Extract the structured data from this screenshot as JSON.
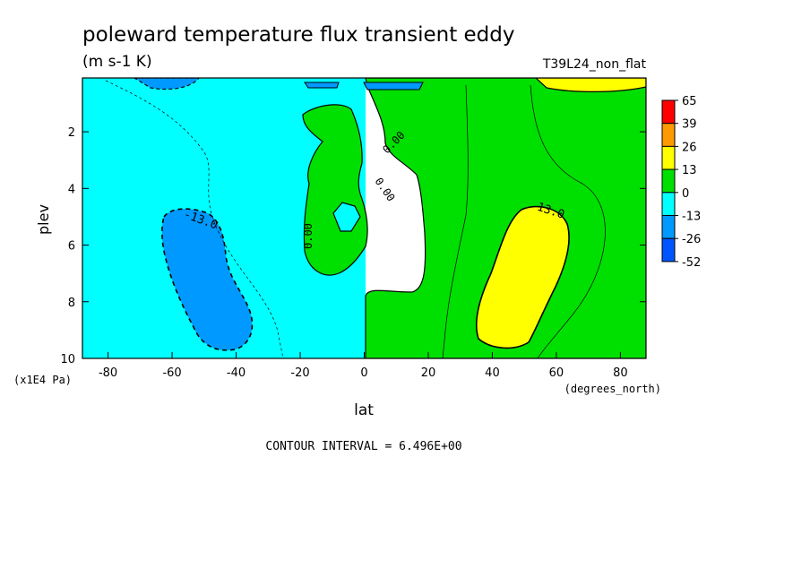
{
  "chart_data": {
    "type": "contour",
    "title": "poleward temperature flux transient eddy",
    "units": "(m s-1 K)",
    "run_label": "T39L24_non_flat",
    "xlabel": "lat",
    "x_units": "(degrees_north)",
    "ylabel": "plev",
    "y_units": "(x1E4 Pa)",
    "xlim": [
      -88,
      88
    ],
    "ylim": [
      0.1,
      10
    ],
    "y_inverted": true,
    "x_ticks": [
      -80,
      -60,
      -40,
      -20,
      0,
      20,
      40,
      60,
      80
    ],
    "x_tick_labels": [
      "-80",
      "-60",
      "-40",
      "-20",
      "0",
      "20",
      "40",
      "60",
      "80"
    ],
    "y_ticks": [
      2,
      4,
      6,
      8,
      10
    ],
    "y_tick_labels": [
      "2",
      "4",
      "6",
      "8",
      "10"
    ],
    "contour_interval_text": "CONTOUR INTERVAL = 6.496E+00",
    "contour_labels": [
      "-13.0",
      "0.00",
      "0.00",
      "0.00",
      "13.0"
    ],
    "colorbar": {
      "levels": [
        "65",
        "39",
        "26",
        "13",
        "0",
        "-13",
        "-26",
        "-52"
      ],
      "colors": [
        "#ff0000",
        "#ff9900",
        "#ffff00",
        "#00e000",
        "#00ffff",
        "#0099ff",
        "#0055ff"
      ]
    },
    "regions": [
      {
        "name": "southern-negative-lobe",
        "range": "-26 to -13",
        "lat_center": -50,
        "plev_center": 7.2,
        "lat_width": 22,
        "plev_depth": 4.8
      },
      {
        "name": "northern-positive-lobe",
        "range": "13 to 26",
        "lat_center": 52,
        "plev_center": 7.0,
        "lat_width": 26,
        "plev_depth": 5.0
      },
      {
        "name": "northern-hemisphere-positive",
        "range": "0 to 13",
        "lat_from": 0,
        "lat_to": 88
      },
      {
        "name": "southern-hemisphere-negative",
        "range": "-13 to 0",
        "lat_from": -88,
        "lat_to": 0
      }
    ]
  }
}
